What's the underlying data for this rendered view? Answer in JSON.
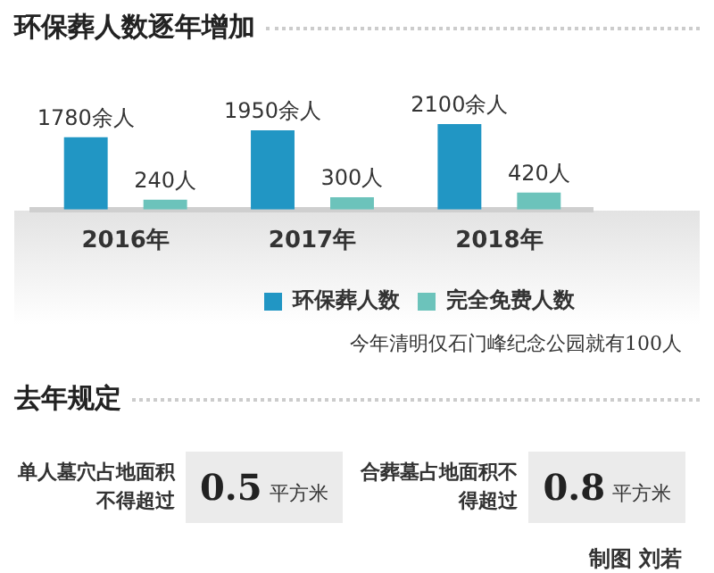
{
  "chart_data": [
    {
      "type": "bar",
      "title": "环保葬人数逐年增加",
      "categories": [
        "2016年",
        "2017年",
        "2018年"
      ],
      "series": [
        {
          "name": "环保葬人数",
          "color": "#2196c4",
          "values": [
            1780,
            1950,
            2100
          ],
          "value_labels": [
            "1780余人",
            "1950余人",
            "2100余人"
          ]
        },
        {
          "name": "完全免费人数",
          "color": "#6cc3bb",
          "values": [
            240,
            300,
            420
          ],
          "value_labels": [
            "240人",
            "300人",
            "420人"
          ]
        }
      ],
      "legend": "bottom right",
      "grid": false,
      "annotations": [
        "今年清明仅石门峰纪念公园就有100人"
      ]
    },
    {
      "type": "other",
      "title": "去年规定",
      "annotations": [
        "单人墓穴占地面积不得超过",
        "0.5 平方米",
        "合葬墓占地面积不得超过",
        "0.8 平方米",
        "制图 刘若"
      ]
    }
  ]
}
